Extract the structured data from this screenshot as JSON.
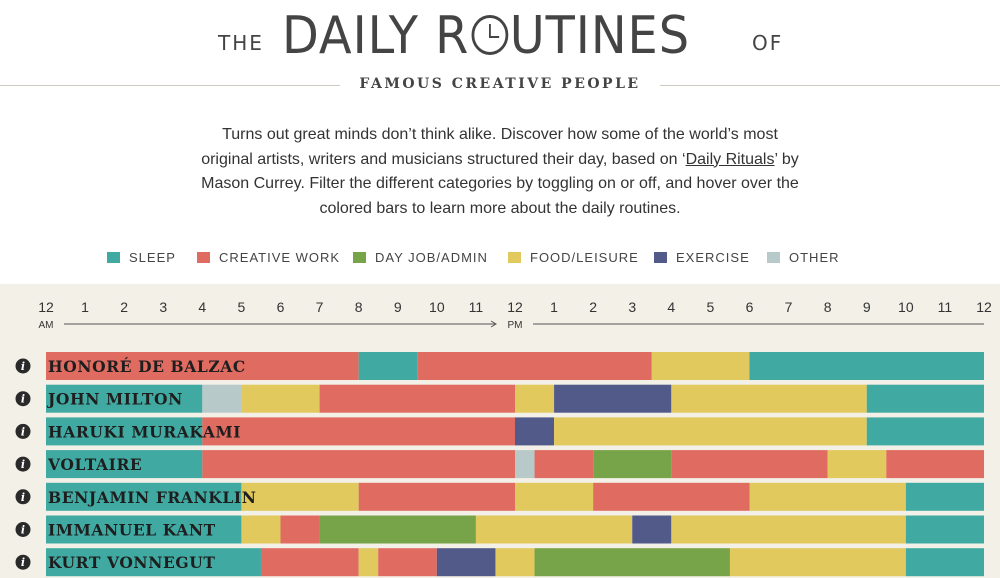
{
  "header": {
    "title_prefix": "THE",
    "title_main": "DAILY ROUTINES",
    "title_suffix": "OF",
    "subtitle": "FAMOUS CREATIVE PEOPLE"
  },
  "intro": {
    "text_before": "Turns out great minds don’t think alike. Discover how some of the world’s most original artists, writers and musicians structured their day, based on ‘",
    "link_text": "Daily Rituals",
    "text_after": "’ by Mason Currey. Filter the different categories by toggling on or off, and hover over the colored bars to learn more about the daily routines."
  },
  "legend": [
    {
      "key": "sleep",
      "label": "SLEEP",
      "color": "#40aaa2"
    },
    {
      "key": "creative",
      "label": "CREATIVE WORK",
      "color": "#e06b60"
    },
    {
      "key": "dayjob",
      "label": "DAY JOB/ADMIN",
      "color": "#77a448"
    },
    {
      "key": "food",
      "label": "FOOD/LEISURE",
      "color": "#e1c95e"
    },
    {
      "key": "exercise",
      "label": "EXERCISE",
      "color": "#515a89"
    },
    {
      "key": "other",
      "label": "OTHER",
      "color": "#b7c9c9"
    }
  ],
  "chart_data": {
    "type": "bar",
    "orientation": "horizontal-timeline",
    "x_unit": "hour of day",
    "xlim": [
      0,
      24
    ],
    "x_tick_labels": [
      "12",
      "1",
      "2",
      "3",
      "4",
      "5",
      "6",
      "7",
      "8",
      "9",
      "10",
      "11",
      "12",
      "1",
      "2",
      "3",
      "4",
      "5",
      "6",
      "7",
      "8",
      "9",
      "10",
      "11",
      "12"
    ],
    "x_markers": [
      {
        "hour": 0,
        "label": "AM"
      },
      {
        "hour": 12,
        "label": "PM"
      }
    ],
    "people": [
      {
        "name": "HONORÉ DE BALZAC",
        "segments": [
          {
            "start": 0,
            "end": 8,
            "category": "creative"
          },
          {
            "start": 8,
            "end": 9.5,
            "category": "sleep"
          },
          {
            "start": 9.5,
            "end": 15.5,
            "category": "creative"
          },
          {
            "start": 15.5,
            "end": 18,
            "category": "food"
          },
          {
            "start": 18,
            "end": 24,
            "category": "sleep"
          }
        ]
      },
      {
        "name": "JOHN MILTON",
        "segments": [
          {
            "start": 0,
            "end": 4,
            "category": "sleep"
          },
          {
            "start": 4,
            "end": 5,
            "category": "other"
          },
          {
            "start": 5,
            "end": 7,
            "category": "food"
          },
          {
            "start": 7,
            "end": 12,
            "category": "creative"
          },
          {
            "start": 12,
            "end": 13,
            "category": "food"
          },
          {
            "start": 13,
            "end": 16,
            "category": "exercise"
          },
          {
            "start": 16,
            "end": 21,
            "category": "food"
          },
          {
            "start": 21,
            "end": 24,
            "category": "sleep"
          }
        ]
      },
      {
        "name": "HARUKI MURAKAMI",
        "segments": [
          {
            "start": 0,
            "end": 4,
            "category": "sleep"
          },
          {
            "start": 4,
            "end": 12,
            "category": "creative"
          },
          {
            "start": 12,
            "end": 13,
            "category": "exercise"
          },
          {
            "start": 13,
            "end": 21,
            "category": "food"
          },
          {
            "start": 21,
            "end": 24,
            "category": "sleep"
          }
        ]
      },
      {
        "name": "VOLTAIRE",
        "segments": [
          {
            "start": 0,
            "end": 4,
            "category": "sleep"
          },
          {
            "start": 4,
            "end": 12,
            "category": "creative"
          },
          {
            "start": 12,
            "end": 12.5,
            "category": "other"
          },
          {
            "start": 12.5,
            "end": 14,
            "category": "creative"
          },
          {
            "start": 14,
            "end": 16,
            "category": "dayjob"
          },
          {
            "start": 16,
            "end": 20,
            "category": "creative"
          },
          {
            "start": 20,
            "end": 21.5,
            "category": "food"
          },
          {
            "start": 21.5,
            "end": 24,
            "category": "creative"
          }
        ]
      },
      {
        "name": "BENJAMIN FRANKLIN",
        "segments": [
          {
            "start": 0,
            "end": 5,
            "category": "sleep"
          },
          {
            "start": 5,
            "end": 8,
            "category": "food"
          },
          {
            "start": 8,
            "end": 12,
            "category": "creative"
          },
          {
            "start": 12,
            "end": 14,
            "category": "food"
          },
          {
            "start": 14,
            "end": 18,
            "category": "creative"
          },
          {
            "start": 18,
            "end": 22,
            "category": "food"
          },
          {
            "start": 22,
            "end": 24,
            "category": "sleep"
          }
        ]
      },
      {
        "name": "IMMANUEL KANT",
        "segments": [
          {
            "start": 0,
            "end": 5,
            "category": "sleep"
          },
          {
            "start": 5,
            "end": 6,
            "category": "food"
          },
          {
            "start": 6,
            "end": 7,
            "category": "creative"
          },
          {
            "start": 7,
            "end": 11,
            "category": "dayjob"
          },
          {
            "start": 11,
            "end": 15,
            "category": "food"
          },
          {
            "start": 15,
            "end": 16,
            "category": "exercise"
          },
          {
            "start": 16,
            "end": 22,
            "category": "food"
          },
          {
            "start": 22,
            "end": 24,
            "category": "sleep"
          }
        ]
      },
      {
        "name": "KURT VONNEGUT",
        "segments": [
          {
            "start": 0,
            "end": 5.5,
            "category": "sleep"
          },
          {
            "start": 5.5,
            "end": 8,
            "category": "creative"
          },
          {
            "start": 8,
            "end": 8.5,
            "category": "food"
          },
          {
            "start": 8.5,
            "end": 10,
            "category": "creative"
          },
          {
            "start": 10,
            "end": 11.5,
            "category": "exercise"
          },
          {
            "start": 11.5,
            "end": 12.5,
            "category": "food"
          },
          {
            "start": 12.5,
            "end": 17.5,
            "category": "dayjob"
          },
          {
            "start": 17.5,
            "end": 22,
            "category": "food"
          },
          {
            "start": 22,
            "end": 24,
            "category": "sleep"
          }
        ]
      }
    ]
  }
}
